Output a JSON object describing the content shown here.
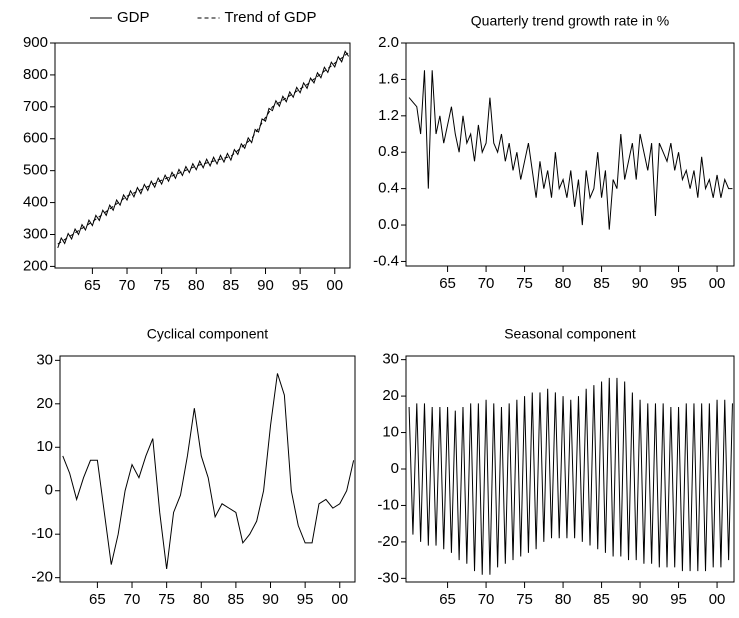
{
  "chart_data": [
    {
      "type": "line",
      "legend": "top",
      "x": [
        1960,
        1960.5,
        1961,
        1961.5,
        1962,
        1962.5,
        1963,
        1963.5,
        1964,
        1964.5,
        1965,
        1965.5,
        1966,
        1966.5,
        1967,
        1967.5,
        1968,
        1968.5,
        1969,
        1969.5,
        1970,
        1970.5,
        1971,
        1971.5,
        1972,
        1972.5,
        1973,
        1973.5,
        1974,
        1974.5,
        1975,
        1975.5,
        1976,
        1976.5,
        1977,
        1977.5,
        1978,
        1978.5,
        1979,
        1979.5,
        1980,
        1980.5,
        1981,
        1981.5,
        1982,
        1982.5,
        1983,
        1983.5,
        1984,
        1984.5,
        1985,
        1985.5,
        1986,
        1986.5,
        1987,
        1987.5,
        1988,
        1988.5,
        1989,
        1989.5,
        1990,
        1990.5,
        1991,
        1991.5,
        1992,
        1992.5,
        1993,
        1993.5,
        1994,
        1994.5,
        1995,
        1995.5,
        1996,
        1996.5,
        1997,
        1997.5,
        1998,
        1998.5,
        1999,
        1999.5,
        2000,
        2000.5,
        2001,
        2001.5,
        2002
      ],
      "series": [
        {
          "name": "GDP",
          "color": "#000000",
          "dashed": false,
          "values": [
            258,
            289,
            272,
            303,
            286,
            317,
            300,
            331,
            314,
            345,
            328,
            360,
            344,
            376,
            360,
            392,
            376,
            408,
            392,
            424,
            408,
            437,
            418,
            447,
            428,
            457,
            438,
            467,
            448,
            477,
            458,
            486,
            467,
            495,
            476,
            504,
            485,
            513,
            494,
            522,
            503,
            530,
            509,
            536,
            515,
            542,
            521,
            548,
            527,
            554,
            533,
            566,
            551,
            584,
            570,
            603,
            588,
            629,
            621,
            662,
            655,
            695,
            688,
            719,
            702,
            733,
            716,
            747,
            730,
            761,
            744,
            775,
            758,
            790,
            775,
            807,
            791,
            824,
            808,
            840,
            825,
            857,
            841,
            874,
            858
          ]
        },
        {
          "name": "Trend of GDP",
          "color": "#000000",
          "dashed": true,
          "values": [
            270,
            277,
            284,
            291,
            298,
            305,
            312,
            319,
            326,
            333,
            340,
            348,
            356,
            364,
            372,
            380,
            388,
            396,
            404,
            412,
            420,
            425,
            430,
            435,
            440,
            445,
            450,
            455,
            460,
            465,
            470,
            474,
            479,
            483,
            488,
            492,
            497,
            501,
            506,
            510,
            515,
            518,
            521,
            524,
            527,
            530,
            533,
            536,
            539,
            542,
            545,
            554,
            563,
            572,
            582,
            591,
            600,
            617,
            633,
            650,
            667,
            683,
            700,
            707,
            714,
            721,
            728,
            735,
            742,
            749,
            756,
            763,
            770,
            778,
            787,
            795,
            803,
            812,
            820,
            828,
            837,
            845,
            853,
            862,
            870
          ]
        }
      ],
      "xlim": [
        1959.6,
        2002.2
      ],
      "xticks": [
        {
          "value": 1965,
          "label": "65"
        },
        {
          "value": 1970,
          "label": "70"
        },
        {
          "value": 1975,
          "label": "75"
        },
        {
          "value": 1980,
          "label": "80"
        },
        {
          "value": 1985,
          "label": "85"
        },
        {
          "value": 1990,
          "label": "90"
        },
        {
          "value": 1995,
          "label": "95"
        },
        {
          "value": 2000,
          "label": "00"
        }
      ],
      "ylim": [
        195,
        900
      ],
      "yticks": [
        200,
        300,
        400,
        500,
        600,
        700,
        800,
        900
      ]
    },
    {
      "type": "line",
      "title": "Quarterly trend growth rate in %",
      "color": "#000000",
      "x": [
        1960,
        1960.5,
        1961,
        1961.5,
        1962,
        1962.5,
        1963,
        1963.5,
        1964,
        1964.5,
        1965,
        1965.5,
        1966,
        1966.5,
        1967,
        1967.5,
        1968,
        1968.5,
        1969,
        1969.5,
        1970,
        1970.5,
        1971,
        1971.5,
        1972,
        1972.5,
        1973,
        1973.5,
        1974,
        1974.5,
        1975,
        1975.5,
        1976,
        1976.5,
        1977,
        1977.5,
        1978,
        1978.5,
        1979,
        1979.5,
        1980,
        1980.5,
        1981,
        1981.5,
        1982,
        1982.5,
        1983,
        1983.5,
        1984,
        1984.5,
        1985,
        1985.5,
        1986,
        1986.5,
        1987,
        1987.5,
        1988,
        1988.5,
        1989,
        1989.5,
        1990,
        1990.5,
        1991,
        1991.5,
        1992,
        1992.5,
        1993,
        1993.5,
        1994,
        1994.5,
        1995,
        1995.5,
        1996,
        1996.5,
        1997,
        1997.5,
        1998,
        1998.5,
        1999,
        1999.5,
        2000,
        2000.5,
        2001,
        2001.5,
        2002
      ],
      "values": [
        1.4,
        1.35,
        1.3,
        1.0,
        1.7,
        0.4,
        1.7,
        1.0,
        1.2,
        0.9,
        1.1,
        1.3,
        1.0,
        0.8,
        1.2,
        0.9,
        1.0,
        0.7,
        1.1,
        0.8,
        0.9,
        1.4,
        0.9,
        0.8,
        1.0,
        0.7,
        0.9,
        0.6,
        0.8,
        0.5,
        0.7,
        0.9,
        0.6,
        0.3,
        0.7,
        0.4,
        0.6,
        0.3,
        0.8,
        0.4,
        0.5,
        0.3,
        0.6,
        0.2,
        0.5,
        0.0,
        0.6,
        0.3,
        0.4,
        0.8,
        0.3,
        0.6,
        -0.05,
        0.5,
        0.4,
        1.0,
        0.5,
        0.7,
        0.9,
        0.5,
        1.0,
        0.8,
        0.6,
        0.9,
        0.1,
        0.9,
        0.8,
        0.7,
        0.9,
        0.6,
        0.8,
        0.5,
        0.6,
        0.4,
        0.6,
        0.3,
        0.75,
        0.4,
        0.5,
        0.3,
        0.55,
        0.3,
        0.5,
        0.4,
        0.4
      ],
      "xlim": [
        1959.6,
        2002.2
      ],
      "xticks": [
        {
          "value": 1965,
          "label": "65"
        },
        {
          "value": 1970,
          "label": "70"
        },
        {
          "value": 1975,
          "label": "75"
        },
        {
          "value": 1980,
          "label": "80"
        },
        {
          "value": 1985,
          "label": "85"
        },
        {
          "value": 1990,
          "label": "90"
        },
        {
          "value": 1995,
          "label": "95"
        },
        {
          "value": 2000,
          "label": "00"
        }
      ],
      "ylim": [
        -0.45,
        2.0
      ],
      "yticks": [
        {
          "value": -0.4,
          "label": "-0.4"
        },
        {
          "value": 0,
          "label": "0.0"
        },
        {
          "value": 0.4,
          "label": "0.4"
        },
        {
          "value": 0.8,
          "label": "0.8"
        },
        {
          "value": 1.2,
          "label": "1.2"
        },
        {
          "value": 1.6,
          "label": "1.6"
        },
        {
          "value": 2,
          "label": "2.0"
        }
      ]
    },
    {
      "type": "line",
      "title": "Cyclical component",
      "color": "#000000",
      "x": [
        1960,
        1961,
        1962,
        1963,
        1964,
        1965,
        1966,
        1967,
        1968,
        1969,
        1970,
        1971,
        1972,
        1973,
        1974,
        1975,
        1976,
        1977,
        1978,
        1979,
        1980,
        1981,
        1982,
        1983,
        1984,
        1985,
        1986,
        1987,
        1988,
        1989,
        1990,
        1991,
        1992,
        1993,
        1994,
        1995,
        1996,
        1997,
        1998,
        1999,
        2000,
        2001,
        2002
      ],
      "values": [
        8,
        4,
        -2,
        3,
        7,
        7,
        -5,
        -17,
        -10,
        0,
        6,
        3,
        8,
        12,
        -5,
        -18,
        -5,
        -1,
        8,
        19,
        8,
        3,
        -6,
        -3,
        -4,
        -5,
        -12,
        -10,
        -7,
        0,
        15,
        27,
        22,
        0,
        -8,
        -12,
        -12,
        -3,
        -2,
        -4,
        -3,
        0,
        7
      ],
      "xlim": [
        1959.6,
        2002.2
      ],
      "xticks": [
        {
          "value": 1965,
          "label": "65"
        },
        {
          "value": 1970,
          "label": "70"
        },
        {
          "value": 1975,
          "label": "75"
        },
        {
          "value": 1980,
          "label": "80"
        },
        {
          "value": 1985,
          "label": "85"
        },
        {
          "value": 1990,
          "label": "90"
        },
        {
          "value": 1995,
          "label": "95"
        },
        {
          "value": 2000,
          "label": "00"
        }
      ],
      "ylim": [
        -21,
        31
      ],
      "yticks": [
        -20,
        -10,
        0,
        10,
        20,
        30
      ]
    },
    {
      "type": "line",
      "title": "Seasonal component",
      "color": "#000000",
      "x": [
        1960,
        1960.5,
        1961,
        1961.5,
        1962,
        1962.5,
        1963,
        1963.5,
        1964,
        1964.5,
        1965,
        1965.5,
        1966,
        1966.5,
        1967,
        1967.5,
        1968,
        1968.5,
        1969,
        1969.5,
        1970,
        1970.5,
        1971,
        1971.5,
        1972,
        1972.5,
        1973,
        1973.5,
        1974,
        1974.5,
        1975,
        1975.5,
        1976,
        1976.5,
        1977,
        1977.5,
        1978,
        1978.5,
        1979,
        1979.5,
        1980,
        1980.5,
        1981,
        1981.5,
        1982,
        1982.5,
        1983,
        1983.5,
        1984,
        1984.5,
        1985,
        1985.5,
        1986,
        1986.5,
        1987,
        1987.5,
        1988,
        1988.5,
        1989,
        1989.5,
        1990,
        1990.5,
        1991,
        1991.5,
        1992,
        1992.5,
        1993,
        1993.5,
        1994,
        1994.5,
        1995,
        1995.5,
        1996,
        1996.5,
        1997,
        1997.5,
        1998,
        1998.5,
        1999,
        1999.5,
        2000,
        2000.5,
        2001,
        2001.5,
        2002
      ],
      "values": [
        17,
        -18,
        18,
        -20,
        18,
        -21,
        17,
        -21,
        17,
        -22,
        17,
        -23,
        16,
        -25,
        17,
        -26,
        18,
        -28,
        18,
        -29,
        19,
        -29,
        18,
        -27,
        17,
        -26,
        18,
        -25,
        19,
        -24,
        20,
        -23,
        21,
        -22,
        21,
        -20,
        22,
        -19,
        21,
        -19,
        20,
        -19,
        19,
        -19,
        20,
        -20,
        22,
        -21,
        23,
        -22,
        24,
        -23,
        25,
        -24,
        25,
        -24,
        24,
        -25,
        21,
        -25,
        19,
        -26,
        18,
        -26,
        18,
        -27,
        18,
        -27,
        17,
        -27,
        17,
        -28,
        18,
        -28,
        18,
        -28,
        18,
        -28,
        18,
        -27,
        19,
        -27,
        19,
        -25,
        18
      ],
      "xlim": [
        1959.6,
        2002.2
      ],
      "xticks": [
        {
          "value": 1965,
          "label": "65"
        },
        {
          "value": 1970,
          "label": "70"
        },
        {
          "value": 1975,
          "label": "75"
        },
        {
          "value": 1980,
          "label": "80"
        },
        {
          "value": 1985,
          "label": "85"
        },
        {
          "value": 1990,
          "label": "90"
        },
        {
          "value": 1995,
          "label": "95"
        },
        {
          "value": 2000,
          "label": "00"
        }
      ],
      "ylim": [
        -31,
        31
      ],
      "yticks": [
        -30,
        -20,
        -10,
        0,
        10,
        20,
        30
      ]
    }
  ]
}
